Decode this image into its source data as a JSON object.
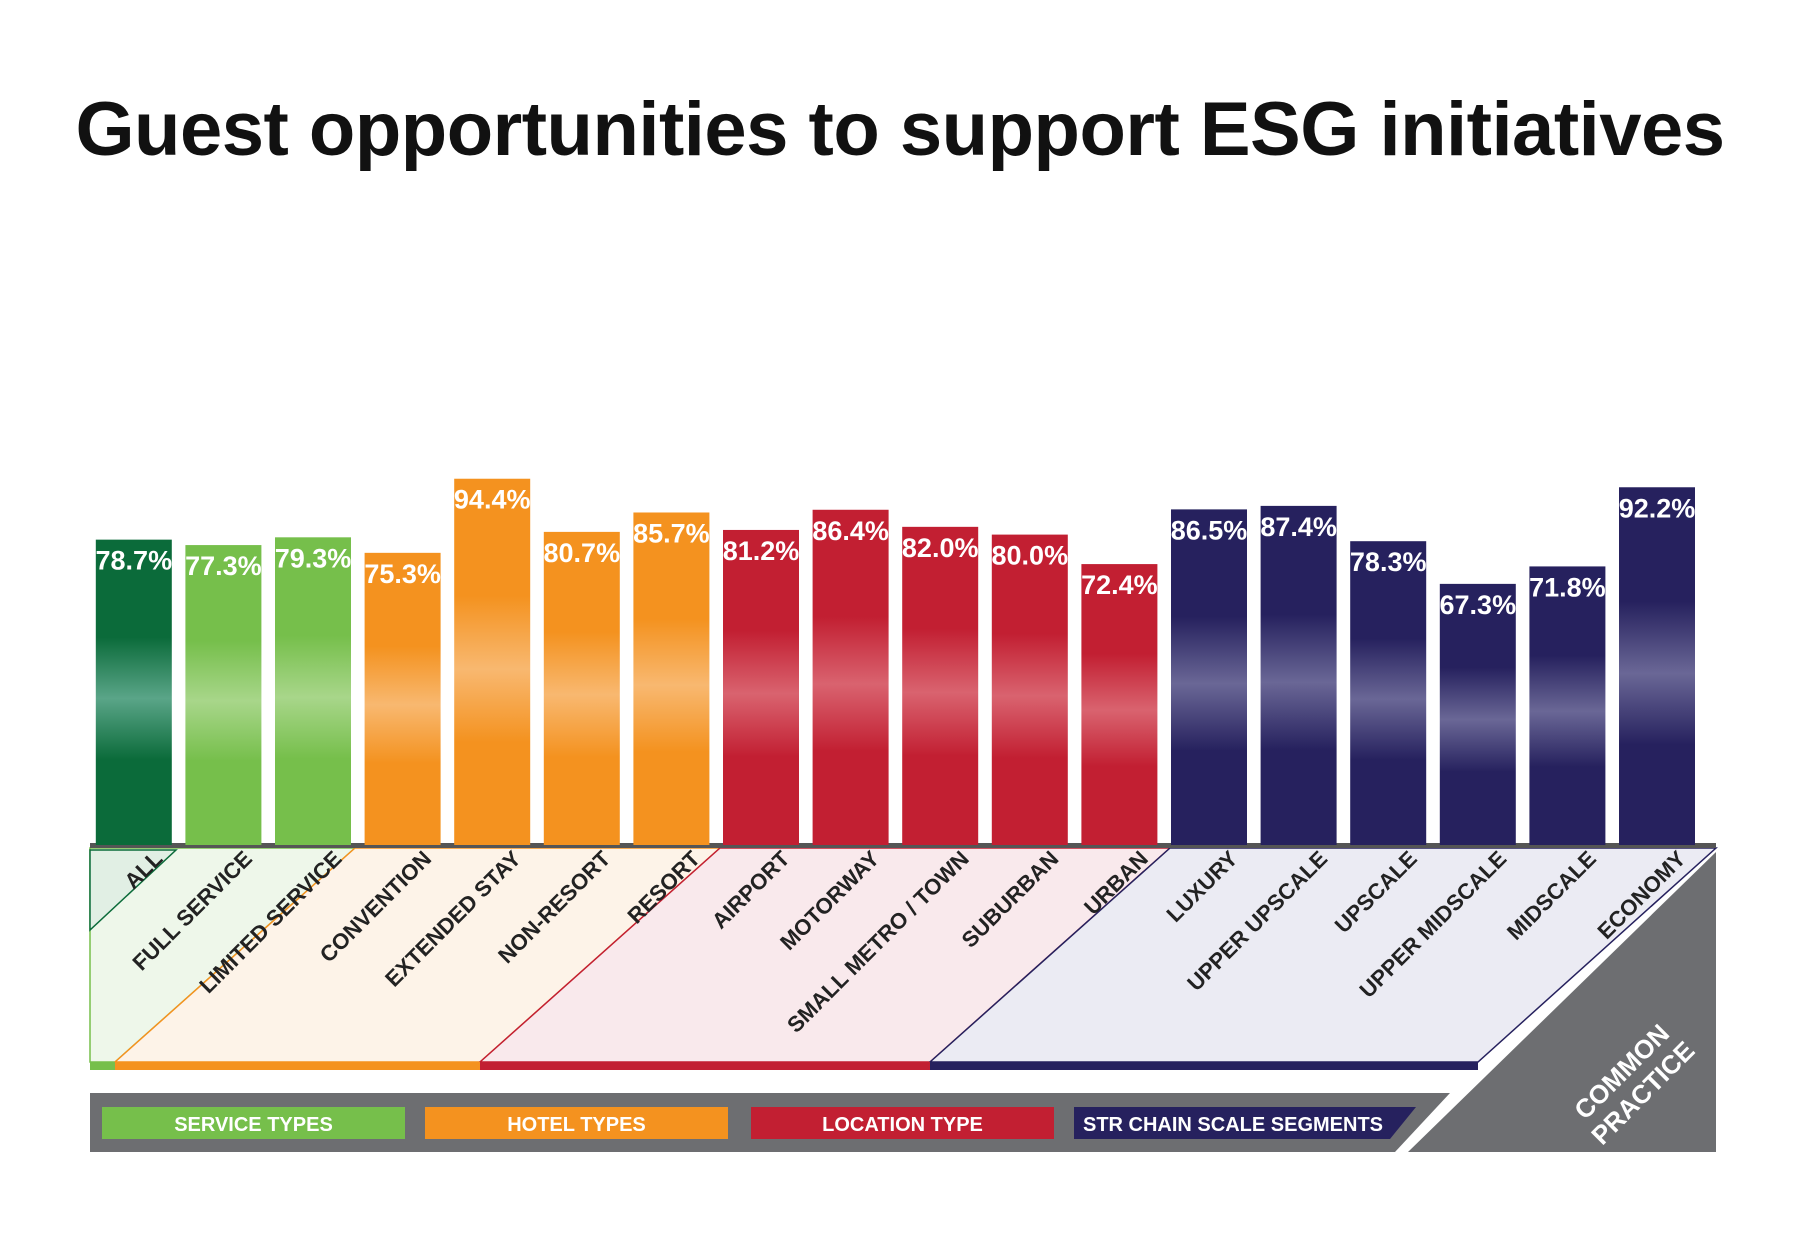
{
  "title": "Guest opportunities to support ESG initiatives",
  "colors": {
    "all": "#0b6b3a",
    "service": "#76bf4b",
    "hotel": "#f4921f",
    "location": "#c21f32",
    "chain": "#26215e",
    "common_practice": "#6d6e71"
  },
  "legend": [
    {
      "label": "SERVICE TYPES",
      "group": "service"
    },
    {
      "label": "HOTEL TYPES",
      "group": "hotel"
    },
    {
      "label": "LOCATION TYPE",
      "group": "location"
    },
    {
      "label": "STR CHAIN SCALE SEGMENTS",
      "group": "chain"
    }
  ],
  "common_practice_label": [
    "COMMON",
    "PRACTICE"
  ],
  "chart_data": {
    "type": "bar",
    "title": "Guest opportunities to support ESG initiatives",
    "xlabel": "",
    "ylabel": "",
    "categories": [
      "ALL",
      "FULL SERVICE",
      "LIMITED SERVICE",
      "CONVENTION",
      "EXTENDED STAY",
      "NON-RESORT",
      "RESORT",
      "AIRPORT",
      "MOTORWAY",
      "SMALL METRO / TOWN",
      "SUBURBAN",
      "URBAN",
      "LUXURY",
      "UPPER UPSCALE",
      "UPSCALE",
      "UPPER MIDSCALE",
      "MIDSCALE",
      "ECONOMY"
    ],
    "values": [
      78.7,
      77.3,
      79.3,
      75.3,
      94.4,
      80.7,
      85.7,
      81.2,
      86.4,
      82.0,
      80.0,
      72.4,
      86.5,
      87.4,
      78.3,
      67.3,
      71.8,
      92.2
    ],
    "value_labels": [
      "78.7%",
      "77.3%",
      "79.3%",
      "75.3%",
      "94.4%",
      "80.7%",
      "85.7%",
      "81.2%",
      "86.4%",
      "82.0%",
      "80.0%",
      "72.4%",
      "86.5%",
      "87.4%",
      "78.3%",
      "67.3%",
      "71.8%",
      "92.2%"
    ],
    "groups": [
      "all",
      "service",
      "service",
      "hotel",
      "hotel",
      "hotel",
      "hotel",
      "location",
      "location",
      "location",
      "location",
      "location",
      "chain",
      "chain",
      "chain",
      "chain",
      "chain",
      "chain"
    ],
    "ylim": [
      0,
      100
    ],
    "grid": false
  }
}
